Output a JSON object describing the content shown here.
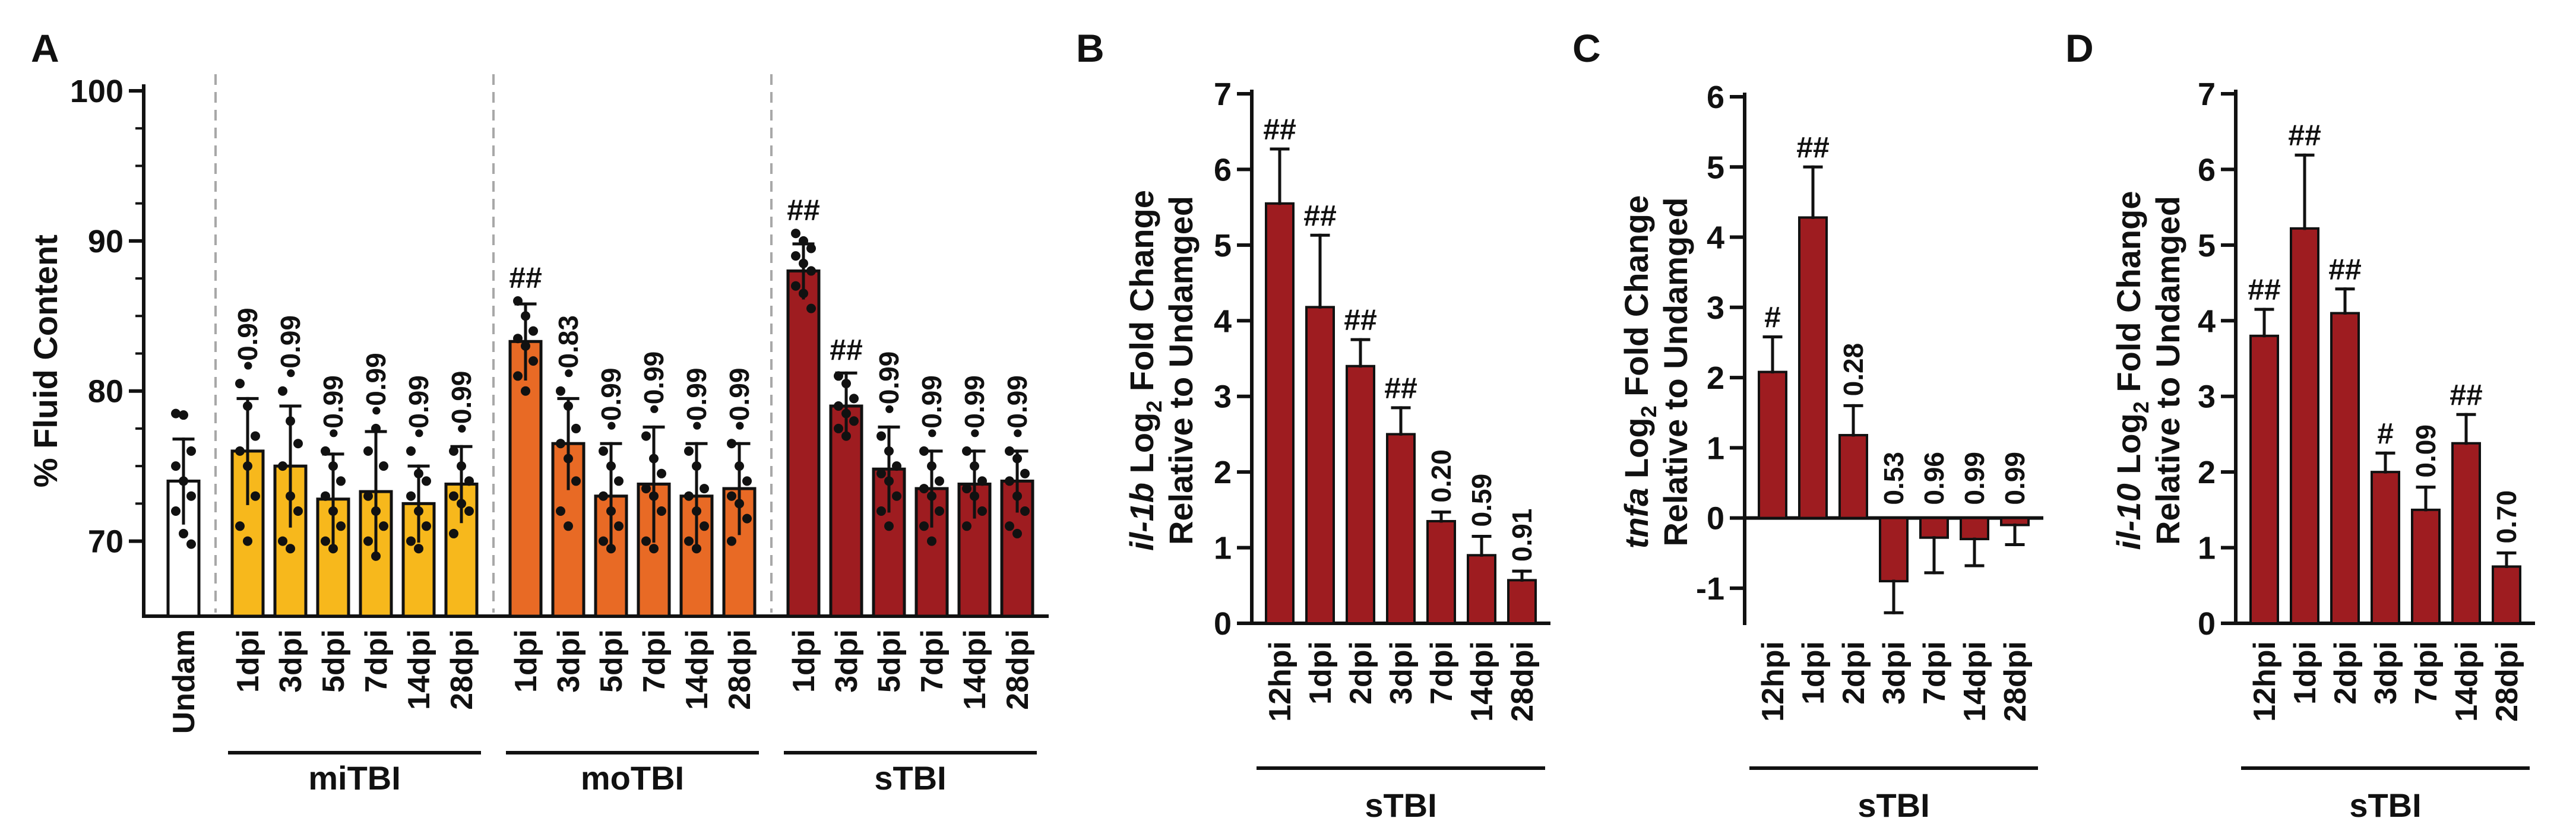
{
  "colors": {
    "undamaged": "#ffffff",
    "miTBI": "#f7b81c",
    "moTBI": "#e86a25",
    "sTBI": "#9e1c20",
    "ink": "#111111",
    "divider": "#a8a8a8"
  },
  "chart_data": [
    {
      "panel": "A",
      "type": "bar",
      "ylabel": "% Fluid Content",
      "ylim": [
        65,
        100
      ],
      "yticks": [
        70,
        80,
        90,
        100
      ],
      "groups": [
        {
          "name": "",
          "bars": [
            {
              "label": "Undam",
              "value": 74.0,
              "err": 2.8,
              "p": "",
              "points": [
                78.5,
                78.4,
                76.0,
                75.0,
                74.0,
                73.0,
                72.0,
                70.5,
                69.8
              ],
              "color_key": "undamaged"
            }
          ]
        },
        {
          "name": "miTBI",
          "bars": [
            {
              "label": "1dpi",
              "value": 76.0,
              "err": 3.5,
              "p": "0.99",
              "points": [
                80.5,
                79.0,
                77.0,
                76.0,
                75.0,
                73.0,
                71.0,
                70.0
              ],
              "color_key": "miTBI"
            },
            {
              "label": "3dpi",
              "value": 75.0,
              "err": 4.0,
              "p": "0.99",
              "points": [
                80.0,
                78.0,
                76.5,
                75.0,
                73.0,
                72.0,
                70.0,
                69.5
              ],
              "color_key": "miTBI"
            },
            {
              "label": "5dpi",
              "value": 72.8,
              "err": 3.0,
              "p": "0.99",
              "points": [
                76.0,
                75.0,
                74.0,
                73.0,
                72.0,
                71.0,
                70.0,
                69.5
              ],
              "color_key": "miTBI"
            },
            {
              "label": "7dpi",
              "value": 73.3,
              "err": 4.0,
              "p": "0.99",
              "points": [
                76.0,
                77.5,
                75.0,
                73.0,
                72.0,
                71.0,
                70.0,
                69.0
              ],
              "color_key": "miTBI"
            },
            {
              "label": "14dpi",
              "value": 72.5,
              "err": 2.5,
              "p": "0.99",
              "points": [
                76.0,
                74.5,
                74.0,
                73.0,
                72.0,
                71.0,
                70.0,
                69.5
              ],
              "color_key": "miTBI"
            },
            {
              "label": "28dpi",
              "value": 73.8,
              "err": 2.5,
              "p": "0.99",
              "points": [
                76.0,
                75.0,
                74.0,
                73.0,
                72.5,
                72.0,
                70.5
              ],
              "color_key": "miTBI"
            }
          ]
        },
        {
          "name": "moTBI",
          "bars": [
            {
              "label": "1dpi",
              "value": 83.3,
              "err": 2.5,
              "p": "##",
              "points": [
                86.0,
                85.0,
                84.0,
                83.5,
                83.0,
                82.0,
                81.0,
                80.0
              ],
              "color_key": "moTBI"
            },
            {
              "label": "3dpi",
              "value": 76.5,
              "err": 3.0,
              "p": "0.83",
              "points": [
                80.0,
                79.0,
                77.5,
                76.5,
                75.5,
                74.0,
                72.0,
                71.0
              ],
              "color_key": "moTBI"
            },
            {
              "label": "5dpi",
              "value": 73.0,
              "err": 3.5,
              "p": "0.99",
              "points": [
                76.0,
                75.0,
                74.0,
                73.0,
                72.0,
                71.0,
                70.0,
                69.5
              ],
              "color_key": "moTBI"
            },
            {
              "label": "7dpi",
              "value": 73.8,
              "err": 3.8,
              "p": "0.99",
              "points": [
                77.0,
                75.5,
                74.5,
                73.5,
                73.0,
                72.0,
                70.0,
                69.5
              ],
              "color_key": "moTBI"
            },
            {
              "label": "14dpi",
              "value": 73.0,
              "err": 3.5,
              "p": "0.99",
              "points": [
                76.0,
                75.0,
                73.5,
                73.0,
                72.0,
                71.0,
                70.0,
                69.5
              ],
              "color_key": "moTBI"
            },
            {
              "label": "28dpi",
              "value": 73.5,
              "err": 3.0,
              "p": "0.99",
              "points": [
                76.5,
                75.0,
                74.0,
                73.0,
                72.5,
                71.5,
                70.0
              ],
              "color_key": "moTBI"
            }
          ]
        },
        {
          "name": "sTBI",
          "bars": [
            {
              "label": "1dpi",
              "value": 88.0,
              "err": 1.8,
              "p": "##",
              "points": [
                90.5,
                90.0,
                89.5,
                89.0,
                88.5,
                88.0,
                87.0,
                86.5,
                85.5
              ],
              "color_key": "sTBI"
            },
            {
              "label": "3dpi",
              "value": 79.0,
              "err": 2.2,
              "p": "##",
              "points": [
                81.0,
                80.5,
                79.5,
                79.0,
                78.5,
                78.0,
                77.5,
                77.0
              ],
              "color_key": "sTBI"
            },
            {
              "label": "5dpi",
              "value": 74.8,
              "err": 2.8,
              "p": "0.99",
              "points": [
                77.0,
                76.0,
                75.0,
                74.5,
                74.0,
                73.0,
                72.0,
                71.0
              ],
              "color_key": "sTBI"
            },
            {
              "label": "7dpi",
              "value": 73.5,
              "err": 2.5,
              "p": "0.99",
              "points": [
                76.0,
                75.0,
                74.0,
                73.5,
                73.0,
                72.0,
                71.0,
                70.0
              ],
              "color_key": "sTBI"
            },
            {
              "label": "14dpi",
              "value": 73.8,
              "err": 2.2,
              "p": "0.99",
              "points": [
                76.0,
                75.0,
                74.0,
                73.5,
                73.0,
                72.0,
                71.0
              ],
              "color_key": "sTBI"
            },
            {
              "label": "28dpi",
              "value": 74.0,
              "err": 2.0,
              "p": "0.99",
              "points": [
                76.0,
                75.5,
                74.5,
                74.0,
                73.0,
                72.0,
                71.0,
                70.5
              ],
              "color_key": "sTBI"
            }
          ]
        }
      ]
    },
    {
      "panel": "B",
      "type": "bar",
      "ylabel_gene": "il-1b",
      "ylabel_rest": " Log",
      "ylabel_sub": "2",
      "ylabel_end": " Fold Change",
      "ylabel2": "Relative to Undamged",
      "ylim": [
        0,
        7
      ],
      "yticks": [
        0,
        1,
        2,
        3,
        4,
        5,
        6,
        7
      ],
      "categories": [
        "12hpi",
        "1dpi",
        "2dpi",
        "3dpi",
        "7dpi",
        "14dpi",
        "28dpi"
      ],
      "values": [
        5.55,
        4.18,
        3.4,
        2.5,
        1.35,
        0.9,
        0.57
      ],
      "errors": [
        0.72,
        0.95,
        0.35,
        0.35,
        0.12,
        0.25,
        0.12
      ],
      "annotations": [
        "##",
        "##",
        "##",
        "##",
        "0.20",
        "0.59",
        "0.91"
      ],
      "group_label": "sTBI"
    },
    {
      "panel": "C",
      "type": "bar",
      "ylabel_gene": "tnfa",
      "ylabel_rest": " Log",
      "ylabel_sub": "2",
      "ylabel_end": " Fold Change",
      "ylabel2": "Relative to Undamged",
      "ylim": [
        -1.5,
        6
      ],
      "yticks": [
        -1,
        0,
        1,
        2,
        3,
        4,
        5,
        6
      ],
      "categories": [
        "12hpi",
        "1dpi",
        "2dpi",
        "3dpi",
        "7dpi",
        "14dpi",
        "28dpi"
      ],
      "values": [
        2.08,
        4.28,
        1.18,
        -0.9,
        -0.28,
        -0.3,
        -0.1
      ],
      "errors": [
        0.5,
        0.72,
        0.42,
        0.45,
        0.5,
        0.38,
        0.28
      ],
      "annotations": [
        "#",
        "##",
        "0.28",
        "0.53",
        "0.96",
        "0.99",
        "0.99"
      ],
      "group_label": "sTBI"
    },
    {
      "panel": "D",
      "type": "bar",
      "ylabel_gene": "il-10",
      "ylabel_rest": " Log",
      "ylabel_sub": "2",
      "ylabel_end": " Fold Change",
      "ylabel2": "Relative to Undamged",
      "ylim": [
        0,
        7
      ],
      "yticks": [
        0,
        1,
        2,
        3,
        4,
        5,
        6,
        7
      ],
      "categories": [
        "12hpi",
        "1dpi",
        "2dpi",
        "3dpi",
        "7dpi",
        "14dpi",
        "28dpi"
      ],
      "values": [
        3.8,
        5.22,
        4.1,
        2.0,
        1.5,
        2.38,
        0.75
      ],
      "errors": [
        0.35,
        0.97,
        0.32,
        0.25,
        0.3,
        0.38,
        0.18
      ],
      "annotations": [
        "##",
        "##",
        "##",
        "#",
        "0.09",
        "##",
        "0.70"
      ],
      "group_label": "sTBI"
    }
  ]
}
